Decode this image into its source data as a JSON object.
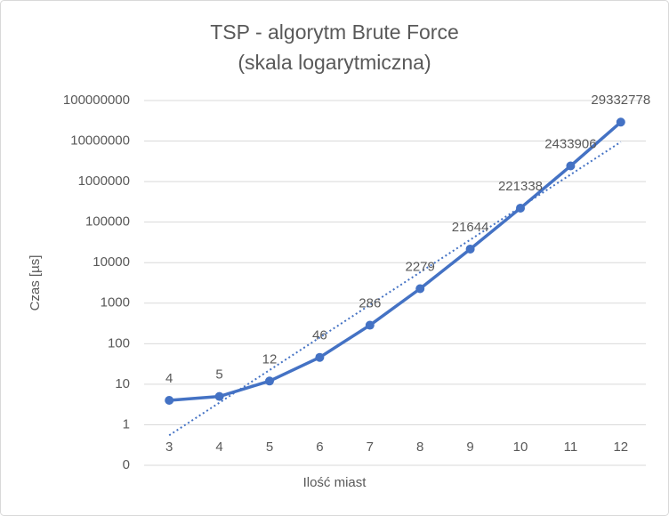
{
  "chart_data": {
    "type": "line",
    "title": "TSP - algorytm Brute Force",
    "subtitle": "(skala logarytmiczna)",
    "x_label": "Ilość miast",
    "y_label": "Czas [µs]",
    "x": [
      3,
      4,
      5,
      6,
      7,
      8,
      9,
      10,
      11,
      12
    ],
    "xlim": [
      2.5,
      12.5
    ],
    "xticks": [
      3,
      4,
      5,
      6,
      7,
      8,
      9,
      10,
      11,
      12
    ],
    "series": [
      {
        "color": "#4472c4",
        "values": [
          4,
          5,
          12,
          46,
          286,
          2279,
          21644,
          221338,
          2433906,
          29332778
        ]
      }
    ],
    "trendline": {
      "x": [
        3,
        12
      ],
      "values": [
        0.55,
        9500000
      ],
      "color": "#4472c4",
      "style": "dotted"
    },
    "y_scale": "log",
    "ylim": [
      0.1,
      100000000
    ],
    "yticks": [
      {
        "value": 0.1,
        "label": "0"
      },
      1,
      10,
      100,
      1000,
      10000,
      100000,
      1000000,
      10000000,
      100000000
    ],
    "grid": true
  }
}
